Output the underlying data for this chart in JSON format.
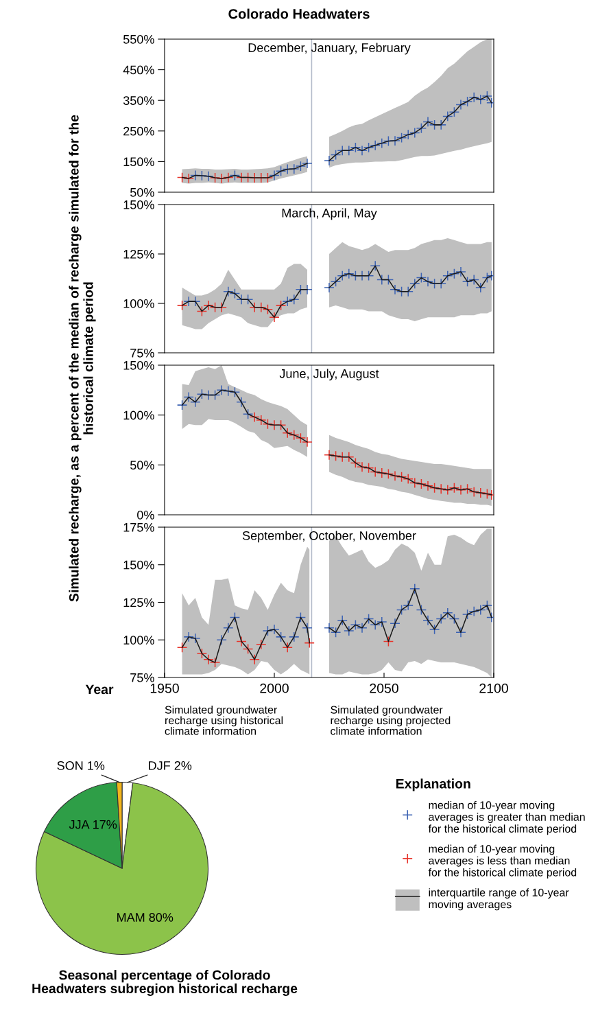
{
  "chart_data": [
    {
      "type": "line",
      "title": "Colorado Headwaters",
      "subtitle": "December, January, February",
      "ylabel": "Simulated recharge, as a percent of the median of recharge simulated for the\nhistorical climate period",
      "xlim": [
        1950,
        2100
      ],
      "ylim": [
        50,
        550
      ],
      "yticks": [
        {
          "value": 50,
          "label": "50%"
        },
        {
          "value": 150,
          "label": "150%"
        },
        {
          "value": 250,
          "label": "250%"
        },
        {
          "value": 350,
          "label": "350%"
        },
        {
          "value": 450,
          "label": "450%"
        },
        {
          "value": 550,
          "label": "550%"
        }
      ],
      "tick_labels": "y",
      "ref_lines": [
        {
          "axis": "x",
          "value": 2017,
          "color": "#b4bccb"
        }
      ],
      "series": [
        {
          "type": "line",
          "color": "#1a1a1a",
          "x": [
            1958,
            1961,
            1964,
            1967,
            1970,
            1973,
            1976,
            1979,
            1982,
            1985,
            1988,
            1991,
            1994,
            1997,
            2000,
            2003,
            2006,
            2009,
            2012,
            2015
          ],
          "values": [
            98,
            95,
            105,
            104,
            102,
            97,
            95,
            98,
            105,
            98,
            98,
            97,
            97,
            97,
            105,
            119,
            125,
            126,
            135,
            144
          ],
          "lower": [
            80,
            78,
            80,
            80,
            82,
            80,
            78,
            80,
            82,
            80,
            80,
            80,
            80,
            82,
            88,
            95,
            100,
            105,
            110,
            116
          ],
          "upper": [
            125,
            126,
            128,
            126,
            126,
            124,
            124,
            125,
            126,
            124,
            124,
            125,
            126,
            128,
            132,
            140,
            148,
            155,
            162,
            167
          ]
        },
        {
          "type": "line",
          "color": "#1a1a1a",
          "x": [
            2025,
            2028,
            2031,
            2034,
            2037,
            2040,
            2043,
            2046,
            2049,
            2052,
            2055,
            2058,
            2061,
            2064,
            2067,
            2070,
            2073,
            2076,
            2079,
            2082,
            2085,
            2088,
            2091,
            2094,
            2097,
            2099
          ],
          "values": [
            153,
            172,
            186,
            186,
            196,
            186,
            196,
            203,
            210,
            217,
            218,
            228,
            238,
            244,
            259,
            280,
            270,
            270,
            298,
            312,
            336,
            346,
            360,
            353,
            364,
            342
          ],
          "lower": [
            130,
            138,
            142,
            145,
            147,
            147,
            148,
            150,
            150,
            151,
            151,
            155,
            160,
            165,
            168,
            168,
            170,
            175,
            180,
            185,
            189,
            195,
            200,
            205,
            210,
            214
          ],
          "upper": [
            231,
            240,
            250,
            262,
            270,
            273,
            285,
            295,
            305,
            315,
            325,
            335,
            345,
            365,
            380,
            392,
            410,
            430,
            455,
            470,
            490,
            510,
            525,
            540,
            550,
            550
          ]
        },
        {
          "type": "scatter",
          "marker": "cross",
          "color": "#3d63b3",
          "x": [
            1964,
            1967,
            1970,
            1982,
            2000,
            2003,
            2006,
            2009,
            2012,
            2015,
            2025,
            2028,
            2031,
            2034,
            2037,
            2040,
            2043,
            2046,
            2049,
            2052,
            2055,
            2058,
            2061,
            2064,
            2067,
            2070,
            2073,
            2076,
            2079,
            2082,
            2085,
            2088,
            2091,
            2094,
            2097,
            2099
          ],
          "values": [
            105,
            104,
            102,
            105,
            105,
            119,
            125,
            126,
            135,
            144,
            153,
            172,
            186,
            186,
            196,
            186,
            196,
            203,
            210,
            217,
            218,
            228,
            238,
            244,
            259,
            280,
            270,
            270,
            298,
            312,
            336,
            346,
            360,
            353,
            364,
            342
          ]
        },
        {
          "type": "scatter",
          "marker": "cross",
          "color": "#e8342b",
          "x": [
            1958,
            1961,
            1973,
            1976,
            1979,
            1985,
            1988,
            1991,
            1994,
            1997
          ],
          "values": [
            98,
            95,
            97,
            95,
            98,
            98,
            98,
            97,
            97,
            97
          ]
        }
      ]
    },
    {
      "type": "line",
      "subtitle": "March, April, May",
      "xlim": [
        1950,
        2100
      ],
      "ylim": [
        75,
        150
      ],
      "yticks": [
        {
          "value": 75,
          "label": "75%"
        },
        {
          "value": 100,
          "label": "100%"
        },
        {
          "value": 125,
          "label": "125%"
        },
        {
          "value": 150,
          "label": "150%"
        }
      ],
      "tick_labels": "y",
      "ref_lines": [
        {
          "axis": "x",
          "value": 2017,
          "color": "#b4bccb"
        }
      ],
      "series": [
        {
          "type": "line",
          "color": "#1a1a1a",
          "x": [
            1958,
            1961,
            1964,
            1967,
            1970,
            1973,
            1976,
            1979,
            1982,
            1985,
            1988,
            1991,
            1994,
            1997,
            2000,
            2003,
            2006,
            2009,
            2012,
            2015
          ],
          "values": [
            99,
            101,
            101,
            96,
            99,
            98,
            98,
            106,
            105,
            102,
            102,
            98,
            98,
            97,
            93,
            99,
            101,
            102,
            107,
            107
          ],
          "lower": [
            89,
            88,
            87,
            87,
            90,
            92,
            94,
            95,
            94,
            93,
            90,
            89,
            88,
            88,
            92,
            94,
            95,
            95,
            97,
            98
          ],
          "upper": [
            108,
            106,
            104,
            104,
            105,
            107,
            110,
            117,
            112,
            107,
            107,
            107,
            107,
            107,
            107,
            110,
            118,
            120,
            120,
            117
          ]
        },
        {
          "type": "line",
          "color": "#1a1a1a",
          "x": [
            2025,
            2028,
            2031,
            2034,
            2037,
            2040,
            2043,
            2046,
            2049,
            2052,
            2055,
            2058,
            2061,
            2064,
            2067,
            2070,
            2073,
            2076,
            2079,
            2082,
            2085,
            2088,
            2091,
            2094,
            2097,
            2099
          ],
          "values": [
            108,
            111,
            114,
            115,
            114,
            114,
            114,
            119,
            112,
            112,
            107,
            106,
            106,
            110,
            113,
            111,
            110,
            110,
            114,
            115,
            116,
            111,
            112,
            108,
            113,
            114
          ],
          "lower": [
            98,
            99,
            98,
            97,
            97,
            97,
            96,
            96,
            96,
            94,
            93,
            92,
            92,
            91,
            92,
            93,
            93,
            93,
            93,
            93,
            94,
            94,
            94,
            95,
            95,
            96
          ],
          "upper": [
            125,
            128,
            131,
            129,
            128,
            127,
            128,
            130,
            128,
            126,
            127,
            127,
            127,
            128,
            130,
            131,
            132,
            132,
            133,
            132,
            131,
            130,
            130,
            130,
            131,
            131
          ]
        },
        {
          "type": "scatter",
          "marker": "cross",
          "color": "#3d63b3",
          "x": [
            1961,
            1964,
            1979,
            1982,
            1985,
            1988,
            2006,
            2009,
            2012,
            2015,
            2025,
            2028,
            2031,
            2034,
            2037,
            2040,
            2043,
            2046,
            2049,
            2052,
            2055,
            2058,
            2061,
            2064,
            2067,
            2070,
            2073,
            2076,
            2079,
            2082,
            2085,
            2088,
            2091,
            2094,
            2097,
            2099
          ],
          "values": [
            101,
            101,
            106,
            105,
            102,
            102,
            101,
            102,
            107,
            107,
            108,
            111,
            114,
            115,
            114,
            114,
            114,
            119,
            112,
            112,
            107,
            106,
            106,
            110,
            113,
            111,
            110,
            110,
            114,
            115,
            116,
            111,
            112,
            108,
            113,
            114
          ]
        },
        {
          "type": "scatter",
          "marker": "cross",
          "color": "#e8342b",
          "x": [
            1958,
            1967,
            1970,
            1973,
            1976,
            1991,
            1994,
            1997,
            2000,
            2003
          ],
          "values": [
            99,
            96,
            99,
            98,
            98,
            98,
            98,
            97,
            93,
            99
          ]
        }
      ]
    },
    {
      "type": "line",
      "subtitle": "June, July, August",
      "xlim": [
        1950,
        2100
      ],
      "ylim": [
        0,
        150
      ],
      "yticks": [
        {
          "value": 0,
          "label": "0%"
        },
        {
          "value": 50,
          "label": "50%"
        },
        {
          "value": 100,
          "label": "100%"
        },
        {
          "value": 150,
          "label": "150%"
        }
      ],
      "tick_labels": "y",
      "ref_lines": [
        {
          "axis": "x",
          "value": 2017,
          "color": "#b4bccb"
        }
      ],
      "series": [
        {
          "type": "line",
          "color": "#1a1a1a",
          "x": [
            1958,
            1961,
            1964,
            1967,
            1970,
            1973,
            1976,
            1979,
            1982,
            1985,
            1988,
            1991,
            1994,
            1997,
            2000,
            2003,
            2006,
            2009,
            2012,
            2015
          ],
          "values": [
            110,
            118,
            113,
            121,
            120,
            120,
            125,
            124,
            123,
            113,
            101,
            98,
            95,
            91,
            90,
            90,
            82,
            80,
            77,
            73
          ],
          "lower": [
            86,
            91,
            90,
            90,
            96,
            95,
            95,
            95,
            92,
            88,
            84,
            82,
            75,
            72,
            67,
            68,
            69,
            65,
            62,
            58
          ],
          "upper": [
            131,
            130,
            144,
            146,
            148,
            146,
            150,
            131,
            128,
            125,
            122,
            120,
            116,
            113,
            111,
            109,
            106,
            100,
            94,
            90
          ]
        },
        {
          "type": "line",
          "color": "#1a1a1a",
          "x": [
            2025,
            2028,
            2031,
            2034,
            2037,
            2040,
            2043,
            2046,
            2049,
            2052,
            2055,
            2058,
            2061,
            2064,
            2067,
            2070,
            2073,
            2076,
            2079,
            2082,
            2085,
            2088,
            2091,
            2094,
            2097,
            2099
          ],
          "values": [
            60,
            59,
            58,
            58,
            52,
            48,
            47,
            43,
            42,
            41,
            39,
            38,
            36,
            32,
            31,
            29,
            27,
            26,
            25,
            27,
            25,
            26,
            23,
            22,
            21,
            20
          ],
          "lower": [
            43,
            40,
            38,
            35,
            33,
            32,
            30,
            29,
            28,
            26,
            25,
            23,
            22,
            20,
            18,
            16,
            15,
            14,
            13,
            12,
            12,
            11,
            11,
            10,
            10,
            9
          ],
          "upper": [
            80,
            77,
            75,
            73,
            70,
            68,
            66,
            63,
            61,
            60,
            58,
            56,
            55,
            54,
            53,
            52,
            51,
            51,
            50,
            49,
            48,
            47,
            46,
            46,
            46,
            46
          ]
        },
        {
          "type": "scatter",
          "marker": "cross",
          "color": "#3d63b3",
          "x": [
            1958,
            1961,
            1964,
            1967,
            1970,
            1973,
            1976,
            1979,
            1982,
            1985,
            1988
          ],
          "values": [
            110,
            118,
            113,
            121,
            120,
            120,
            125,
            124,
            123,
            113,
            101
          ]
        },
        {
          "type": "scatter",
          "marker": "cross",
          "color": "#e8342b",
          "x": [
            1991,
            1994,
            1997,
            2000,
            2003,
            2006,
            2009,
            2012,
            2015,
            2025,
            2028,
            2031,
            2034,
            2037,
            2040,
            2043,
            2046,
            2049,
            2052,
            2055,
            2058,
            2061,
            2064,
            2067,
            2070,
            2073,
            2076,
            2079,
            2082,
            2085,
            2088,
            2091,
            2094,
            2097,
            2099
          ],
          "values": [
            98,
            95,
            91,
            90,
            90,
            82,
            80,
            77,
            73,
            60,
            59,
            58,
            58,
            52,
            48,
            47,
            43,
            42,
            41,
            39,
            38,
            36,
            32,
            31,
            29,
            27,
            26,
            25,
            27,
            25,
            26,
            23,
            22,
            21,
            20
          ]
        }
      ]
    },
    {
      "type": "line",
      "subtitle": "September, October, November",
      "xlabel": "Year",
      "xlim": [
        1950,
        2100
      ],
      "xticks": [
        1950,
        2000,
        2050,
        2100
      ],
      "ylim": [
        75,
        175
      ],
      "yticks": [
        {
          "value": 75,
          "label": "75%"
        },
        {
          "value": 100,
          "label": "100%"
        },
        {
          "value": 125,
          "label": "125%"
        },
        {
          "value": 150,
          "label": "150%"
        },
        {
          "value": 175,
          "label": "175%"
        }
      ],
      "legend": "bottom right",
      "legend_title": "Explanation",
      "annotations": [
        "Simulated groundwater\nrecharge using historical\nclimate information",
        "Simulated groundwater\nrecharge using projected\nclimate information"
      ],
      "ref_lines": [
        {
          "axis": "x",
          "value": 2017,
          "color": "#b4bccb"
        }
      ],
      "series": [
        {
          "type": "scatter",
          "marker": "cross",
          "name": "median of 10-year moving\naverages is greater than median\nfor the historical climate period",
          "color": "#3d63b3",
          "x": [
            1961,
            1964,
            1976,
            1979,
            1982,
            1997,
            2000,
            2003,
            2009,
            2012,
            2015,
            2025,
            2028,
            2031,
            2034,
            2037,
            2040,
            2043,
            2046,
            2049,
            2055,
            2058,
            2061,
            2064,
            2067,
            2070,
            2073,
            2076,
            2079,
            2082,
            2085,
            2088,
            2091,
            2094,
            2097,
            2099
          ],
          "values": [
            102,
            101,
            100,
            108,
            115,
            106,
            107,
            102,
            102,
            115,
            108,
            108,
            105,
            113,
            106,
            110,
            108,
            114,
            110,
            112,
            111,
            120,
            123,
            134,
            120,
            113,
            107,
            114,
            118,
            114,
            105,
            117,
            119,
            120,
            123,
            115
          ]
        },
        {
          "type": "scatter",
          "marker": "cross",
          "name": "median of 10-year moving\naverages is less than median\nfor the historical climate period",
          "color": "#e8342b",
          "x": [
            1958,
            1967,
            1970,
            1973,
            1985,
            1988,
            1991,
            1994,
            2006,
            2016,
            2052
          ],
          "values": [
            95,
            91,
            87,
            85,
            99,
            94,
            87,
            97,
            95,
            98,
            99
          ]
        },
        {
          "type": "line",
          "name": "interquartile range of 10-year\nmoving averages",
          "color": "#1a1a1a",
          "x": [
            1958,
            1961,
            1964,
            1967,
            1970,
            1973,
            1976,
            1979,
            1982,
            1985,
            1988,
            1991,
            1994,
            1997,
            2000,
            2003,
            2006,
            2009,
            2012,
            2015,
            2016
          ],
          "values": [
            95,
            102,
            101,
            91,
            87,
            85,
            100,
            108,
            115,
            99,
            94,
            87,
            97,
            106,
            107,
            102,
            95,
            102,
            115,
            108,
            98
          ],
          "lower": [
            77,
            77,
            77,
            77,
            78,
            80,
            84,
            83,
            82,
            80,
            77,
            80,
            86,
            85,
            80,
            77,
            80,
            84,
            80,
            78,
            77
          ],
          "upper": [
            131,
            123,
            128,
            115,
            110,
            140,
            140,
            141,
            123,
            121,
            120,
            133,
            128,
            120,
            130,
            138,
            133,
            131,
            150,
            162,
            160
          ]
        },
        {
          "type": "line",
          "color": "#1a1a1a",
          "x": [
            2025,
            2028,
            2031,
            2034,
            2037,
            2040,
            2043,
            2046,
            2049,
            2052,
            2055,
            2058,
            2061,
            2064,
            2067,
            2070,
            2073,
            2076,
            2079,
            2082,
            2085,
            2088,
            2091,
            2094,
            2097,
            2099
          ],
          "values": [
            108,
            105,
            113,
            106,
            110,
            108,
            114,
            110,
            112,
            99,
            111,
            120,
            123,
            134,
            120,
            113,
            107,
            114,
            118,
            114,
            105,
            117,
            119,
            120,
            123,
            115
          ],
          "lower": [
            78,
            77,
            77,
            79,
            78,
            77,
            77,
            78,
            80,
            85,
            80,
            79,
            85,
            86,
            84,
            87,
            86,
            85,
            85,
            85,
            84,
            83,
            82,
            80,
            78,
            75
          ],
          "upper": [
            166,
            169,
            162,
            156,
            158,
            160,
            152,
            148,
            150,
            153,
            160,
            164,
            162,
            158,
            146,
            158,
            150,
            150,
            169,
            170,
            168,
            165,
            163,
            170,
            174,
            174
          ]
        }
      ]
    },
    {
      "type": "pie",
      "title": "Seasonal percentage of Colorado\nHeadwaters subregion historical recharge",
      "categories": [
        "DJF",
        "MAM",
        "JJA",
        "SON"
      ],
      "values": [
        2,
        80,
        17,
        1
      ],
      "value_labels": [
        "2%",
        "80%",
        "17%",
        "1%"
      ],
      "colors": [
        "#ffffff",
        "#8cc34a",
        "#2e9e47",
        "#f2b51c"
      ]
    }
  ]
}
